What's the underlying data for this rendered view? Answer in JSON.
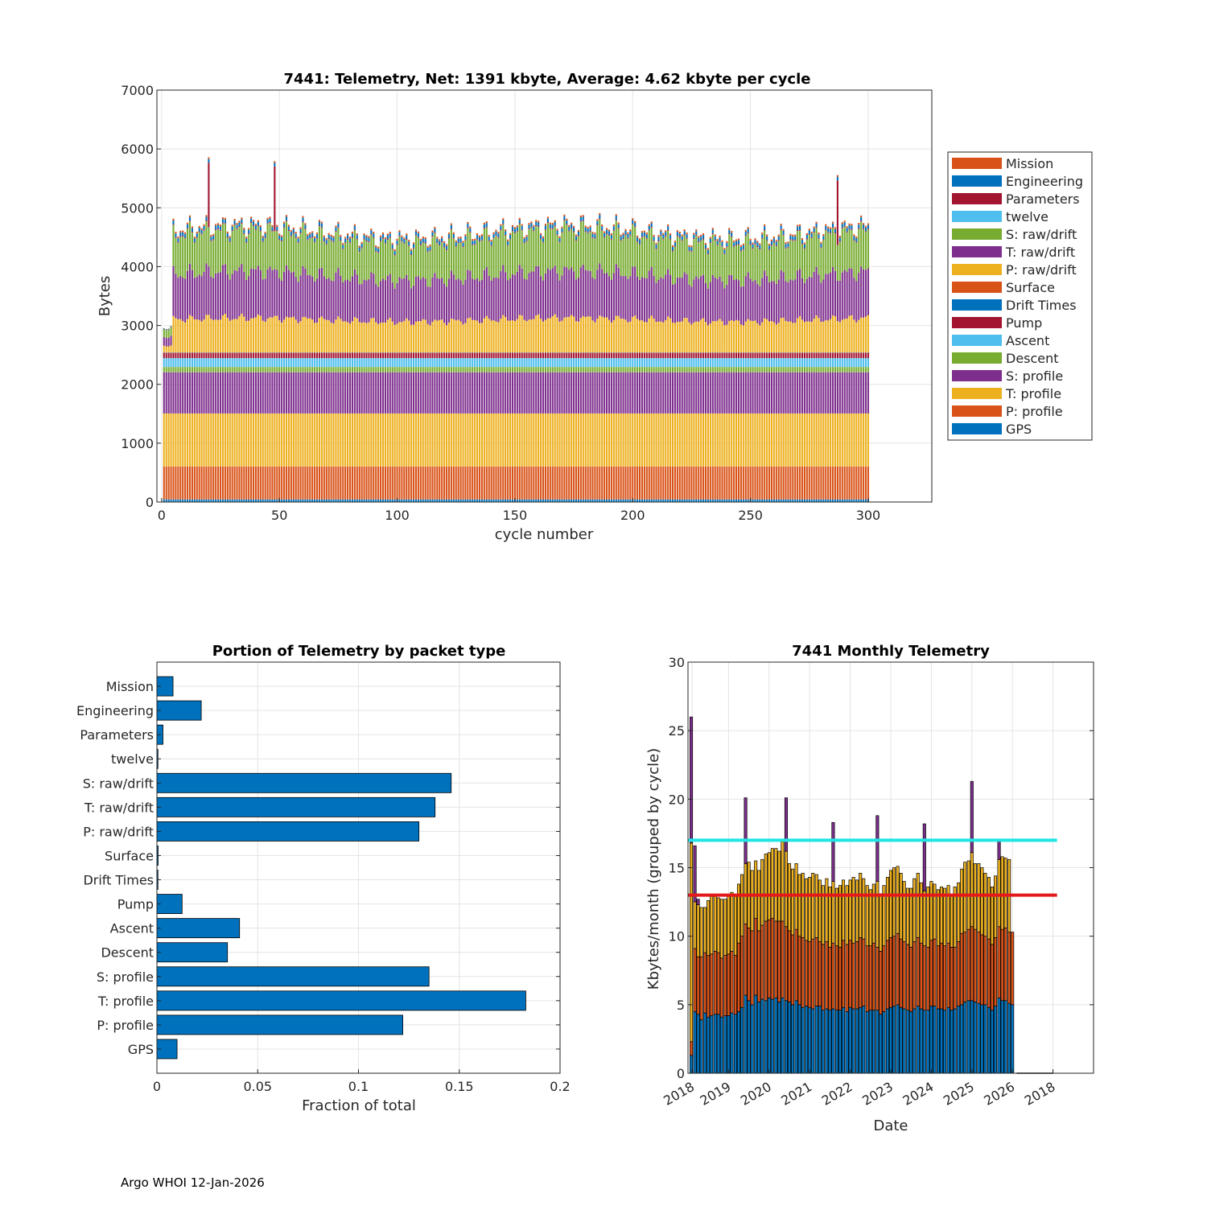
{
  "footer": "Argo WHOI 12-Jan-2026",
  "colors": {
    "c1": "#0072BD",
    "c2": "#D95319",
    "c3": "#EDB120",
    "c4": "#7E2F8E",
    "c5": "#77AC30",
    "c6": "#4DBEEE",
    "c7": "#A2142F",
    "cyan_line": "#1FE5E5",
    "red_line": "#E51919"
  },
  "chart_data": [
    {
      "id": "top",
      "type": "bar",
      "stacked": true,
      "title": "7441: Telemetry, Net:   1391 kbyte,  Average: 4.62 kbyte per cycle",
      "xlabel": "cycle number",
      "ylabel": "Bytes",
      "xlim": [
        -2,
        327
      ],
      "ylim": [
        0,
        7000
      ],
      "xticks": [
        0,
        50,
        100,
        150,
        200,
        250,
        300
      ],
      "yticks": [
        0,
        1000,
        2000,
        3000,
        4000,
        5000,
        6000,
        7000
      ],
      "n_cycles": 300,
      "legend_position": "outside-right",
      "legend": [
        "Mission",
        "Engineering",
        "Parameters",
        "twelve",
        "S: raw/drift",
        "T: raw/drift",
        "P: raw/drift",
        "Surface",
        "Drift Times",
        "Pump",
        "Ascent",
        "Descent",
        "S: profile",
        "T: profile",
        "P: profile",
        "GPS"
      ],
      "series_typical_bytes": [
        {
          "name": "GPS",
          "value": 45
        },
        {
          "name": "P: profile",
          "value": 560
        },
        {
          "name": "T: profile",
          "value": 900
        },
        {
          "name": "S: profile",
          "value": 700
        },
        {
          "name": "Descent",
          "value": 90
        },
        {
          "name": "Ascent",
          "value": 150
        },
        {
          "name": "Pump",
          "value": 90
        },
        {
          "name": "Drift Times",
          "value": 5
        },
        {
          "name": "Surface",
          "value": 5
        },
        {
          "name": "P: raw/drift",
          "value": 550
        },
        {
          "name": "T: raw/drift",
          "value": 750
        },
        {
          "name": "S: raw/drift",
          "value": 650
        },
        {
          "name": "twelve",
          "value": 3
        },
        {
          "name": "Parameters",
          "value": 15
        },
        {
          "name": "Engineering",
          "value": 60
        },
        {
          "name": "Mission",
          "value": 30
        }
      ]
    },
    {
      "id": "bottom-left",
      "type": "bar",
      "orientation": "horizontal",
      "title": "Portion of Telemetry by packet type",
      "xlabel": "Fraction of total",
      "xlim": [
        0,
        0.2
      ],
      "xticks": [
        0,
        0.05,
        0.1,
        0.15,
        0.2
      ],
      "xtick_labels": [
        "0",
        "0.05",
        "0.1",
        "0.15",
        "0.2"
      ],
      "categories": [
        "Mission",
        "Engineering",
        "Parameters",
        "twelve",
        "S: raw/drift",
        "T: raw/drift",
        "P: raw/drift",
        "Surface",
        "Drift Times",
        "Pump",
        "Ascent",
        "Descent",
        "S: profile",
        "T: profile",
        "P: profile",
        "GPS"
      ],
      "values": [
        0.008,
        0.022,
        0.003,
        0.0005,
        0.146,
        0.138,
        0.13,
        0.0006,
        0.0005,
        0.0125,
        0.041,
        0.035,
        0.135,
        0.183,
        0.122,
        0.01
      ]
    },
    {
      "id": "bottom-right",
      "type": "bar",
      "stacked": true,
      "title": "7441 Monthly Telemetry",
      "xlabel": "Date",
      "ylabel": "Kbytes/month (grouped by cycle)",
      "ylim": [
        0,
        30
      ],
      "yticks": [
        0,
        5,
        10,
        15,
        20,
        25,
        30
      ],
      "xtick_labels": [
        "2018",
        "2019",
        "2020",
        "2021",
        "2022",
        "2023",
        "2024",
        "2025",
        "2026",
        "2018"
      ],
      "xlim_years": [
        2018.0,
        2028.0
      ],
      "cyan_line_value": 17,
      "red_line_value": 13,
      "monthly_series": [
        "base",
        "middle",
        "upper",
        "top"
      ],
      "months": [
        {
          "year": 2018.08,
          "base": 1.3,
          "middle": 1.0,
          "upper": 14.5,
          "top": 9.2
        },
        {
          "year": 2018.17,
          "base": 4.5,
          "middle": 4.6,
          "upper": 3.4,
          "top": 4.1
        },
        {
          "year": 2018.25,
          "base": 4.3,
          "middle": 4.2,
          "upper": 3.8,
          "top": 0.4
        },
        {
          "year": 2018.33,
          "base": 3.9,
          "middle": 4.6,
          "upper": 3.6,
          "top": 0.0
        },
        {
          "year": 2018.42,
          "base": 4.4,
          "middle": 4.4,
          "upper": 3.3,
          "top": 0.0
        },
        {
          "year": 2018.5,
          "base": 4.1,
          "middle": 4.5,
          "upper": 4.0,
          "top": 0.0
        },
        {
          "year": 2018.58,
          "base": 4.2,
          "middle": 4.5,
          "upper": 4.2,
          "top": 0.0
        },
        {
          "year": 2018.67,
          "base": 4.3,
          "middle": 4.6,
          "upper": 4.0,
          "top": 0.0
        },
        {
          "year": 2018.75,
          "base": 4.3,
          "middle": 4.5,
          "upper": 4.0,
          "top": 0.0
        },
        {
          "year": 2018.83,
          "base": 4.1,
          "middle": 4.3,
          "upper": 4.3,
          "top": 0.0
        },
        {
          "year": 2018.92,
          "base": 4.2,
          "middle": 4.4,
          "upper": 4.1,
          "top": 0.0
        },
        {
          "year": 2019.0,
          "base": 4.2,
          "middle": 4.5,
          "upper": 4.2,
          "top": 0.0
        },
        {
          "year": 2019.08,
          "base": 4.4,
          "middle": 4.5,
          "upper": 4.3,
          "top": 0.0
        },
        {
          "year": 2019.17,
          "base": 4.3,
          "middle": 4.3,
          "upper": 4.3,
          "top": 0.0
        },
        {
          "year": 2019.25,
          "base": 4.5,
          "middle": 5.0,
          "upper": 4.3,
          "top": 0.0
        },
        {
          "year": 2019.33,
          "base": 4.8,
          "middle": 5.2,
          "upper": 4.5,
          "top": 0.0
        },
        {
          "year": 2019.42,
          "base": 5.7,
          "middle": 5.2,
          "upper": 4.4,
          "top": 4.8
        },
        {
          "year": 2019.5,
          "base": 5.3,
          "middle": 5.3,
          "upper": 4.8,
          "top": 0.0
        },
        {
          "year": 2019.58,
          "base": 5.0,
          "middle": 5.4,
          "upper": 4.4,
          "top": 0.0
        },
        {
          "year": 2019.67,
          "base": 5.7,
          "middle": 5.6,
          "upper": 4.2,
          "top": 0.0
        },
        {
          "year": 2019.75,
          "base": 5.2,
          "middle": 5.2,
          "upper": 4.4,
          "top": 0.0
        },
        {
          "year": 2019.83,
          "base": 5.4,
          "middle": 5.4,
          "upper": 4.8,
          "top": 0.0
        },
        {
          "year": 2019.92,
          "base": 5.3,
          "middle": 5.8,
          "upper": 4.9,
          "top": 0.0
        },
        {
          "year": 2020.0,
          "base": 5.5,
          "middle": 5.7,
          "upper": 4.9,
          "top": 0.0
        },
        {
          "year": 2020.08,
          "base": 5.4,
          "middle": 5.9,
          "upper": 5.1,
          "top": 0.0
        },
        {
          "year": 2020.17,
          "base": 5.5,
          "middle": 5.6,
          "upper": 5.3,
          "top": 0.0
        },
        {
          "year": 2020.25,
          "base": 5.2,
          "middle": 5.9,
          "upper": 5.1,
          "top": 0.0
        },
        {
          "year": 2020.33,
          "base": 5.5,
          "middle": 5.6,
          "upper": 5.8,
          "top": 0.0
        },
        {
          "year": 2020.42,
          "base": 5.3,
          "middle": 5.4,
          "upper": 5.5,
          "top": 3.9
        },
        {
          "year": 2020.5,
          "base": 5.2,
          "middle": 5.2,
          "upper": 4.9,
          "top": 0.0
        },
        {
          "year": 2020.58,
          "base": 5.0,
          "middle": 5.1,
          "upper": 4.8,
          "top": 0.0
        },
        {
          "year": 2020.67,
          "base": 5.3,
          "middle": 5.2,
          "upper": 4.8,
          "top": 0.0
        },
        {
          "year": 2020.75,
          "base": 5.0,
          "middle": 5.0,
          "upper": 4.5,
          "top": 0.0
        },
        {
          "year": 2020.83,
          "base": 4.8,
          "middle": 5.1,
          "upper": 4.7,
          "top": 0.0
        },
        {
          "year": 2020.92,
          "base": 4.9,
          "middle": 4.8,
          "upper": 4.5,
          "top": 0.0
        },
        {
          "year": 2021.0,
          "base": 4.8,
          "middle": 4.8,
          "upper": 4.7,
          "top": 0.0
        },
        {
          "year": 2021.08,
          "base": 4.7,
          "middle": 5.1,
          "upper": 4.8,
          "top": 0.0
        },
        {
          "year": 2021.17,
          "base": 4.9,
          "middle": 5.0,
          "upper": 4.6,
          "top": 0.0
        },
        {
          "year": 2021.25,
          "base": 4.9,
          "middle": 4.7,
          "upper": 4.5,
          "top": 0.0
        },
        {
          "year": 2021.33,
          "base": 4.6,
          "middle": 4.8,
          "upper": 4.3,
          "top": 0.0
        },
        {
          "year": 2021.42,
          "base": 4.7,
          "middle": 4.9,
          "upper": 4.6,
          "top": 0.0
        },
        {
          "year": 2021.5,
          "base": 4.6,
          "middle": 4.6,
          "upper": 4.4,
          "top": 0.0
        },
        {
          "year": 2021.58,
          "base": 4.7,
          "middle": 4.8,
          "upper": 4.5,
          "top": 4.3
        },
        {
          "year": 2021.67,
          "base": 4.6,
          "middle": 4.7,
          "upper": 4.2,
          "top": 0.0
        },
        {
          "year": 2021.75,
          "base": 4.6,
          "middle": 4.6,
          "upper": 4.5,
          "top": 0.0
        },
        {
          "year": 2021.83,
          "base": 4.8,
          "middle": 4.9,
          "upper": 4.4,
          "top": 0.0
        },
        {
          "year": 2021.92,
          "base": 4.5,
          "middle": 4.9,
          "upper": 4.3,
          "top": 0.0
        },
        {
          "year": 2022.0,
          "base": 4.8,
          "middle": 4.9,
          "upper": 4.4,
          "top": 0.0
        },
        {
          "year": 2022.08,
          "base": 4.7,
          "middle": 4.8,
          "upper": 4.8,
          "top": 0.0
        },
        {
          "year": 2022.17,
          "base": 4.7,
          "middle": 4.9,
          "upper": 4.5,
          "top": 0.0
        },
        {
          "year": 2022.25,
          "base": 4.8,
          "middle": 5.1,
          "upper": 4.7,
          "top": 0.0
        },
        {
          "year": 2022.33,
          "base": 4.9,
          "middle": 4.9,
          "upper": 4.4,
          "top": 0.0
        },
        {
          "year": 2022.42,
          "base": 4.5,
          "middle": 4.8,
          "upper": 4.4,
          "top": 0.0
        },
        {
          "year": 2022.5,
          "base": 4.6,
          "middle": 4.7,
          "upper": 4.1,
          "top": 0.0
        },
        {
          "year": 2022.58,
          "base": 4.6,
          "middle": 4.9,
          "upper": 4.3,
          "top": 0.0
        },
        {
          "year": 2022.67,
          "base": 4.6,
          "middle": 4.6,
          "upper": 4.8,
          "top": 4.8
        },
        {
          "year": 2022.75,
          "base": 4.3,
          "middle": 4.6,
          "upper": 4.2,
          "top": 0.0
        },
        {
          "year": 2022.83,
          "base": 4.5,
          "middle": 4.8,
          "upper": 4.4,
          "top": 0.0
        },
        {
          "year": 2022.92,
          "base": 4.7,
          "middle": 5.0,
          "upper": 4.6,
          "top": 0.0
        },
        {
          "year": 2023.0,
          "base": 4.8,
          "middle": 5.1,
          "upper": 4.9,
          "top": 0.0
        },
        {
          "year": 2023.08,
          "base": 4.9,
          "middle": 5.1,
          "upper": 5.0,
          "top": 0.0
        },
        {
          "year": 2023.17,
          "base": 5.0,
          "middle": 5.2,
          "upper": 4.9,
          "top": 0.0
        },
        {
          "year": 2023.25,
          "base": 4.8,
          "middle": 5.0,
          "upper": 4.8,
          "top": 0.0
        },
        {
          "year": 2023.33,
          "base": 4.7,
          "middle": 4.9,
          "upper": 4.4,
          "top": 0.0
        },
        {
          "year": 2023.42,
          "base": 4.6,
          "middle": 4.8,
          "upper": 4.1,
          "top": 0.0
        },
        {
          "year": 2023.5,
          "base": 4.5,
          "middle": 4.7,
          "upper": 4.3,
          "top": 0.0
        },
        {
          "year": 2023.58,
          "base": 4.7,
          "middle": 4.9,
          "upper": 4.6,
          "top": 0.0
        },
        {
          "year": 2023.67,
          "base": 4.9,
          "middle": 5.0,
          "upper": 4.7,
          "top": 0.0
        },
        {
          "year": 2023.75,
          "base": 4.7,
          "middle": 4.8,
          "upper": 4.4,
          "top": 0.0
        },
        {
          "year": 2023.83,
          "base": 4.6,
          "middle": 4.7,
          "upper": 4.0,
          "top": 4.9
        },
        {
          "year": 2023.92,
          "base": 4.6,
          "middle": 4.6,
          "upper": 4.4,
          "top": 0.0
        },
        {
          "year": 2024.0,
          "base": 4.9,
          "middle": 4.8,
          "upper": 4.3,
          "top": 0.0
        },
        {
          "year": 2024.08,
          "base": 4.9,
          "middle": 4.9,
          "upper": 4.0,
          "top": 0.0
        },
        {
          "year": 2024.17,
          "base": 4.7,
          "middle": 4.6,
          "upper": 4.1,
          "top": 0.0
        },
        {
          "year": 2024.25,
          "base": 4.7,
          "middle": 4.8,
          "upper": 4.1,
          "top": 0.0
        },
        {
          "year": 2024.33,
          "base": 4.6,
          "middle": 4.7,
          "upper": 4.2,
          "top": 0.0
        },
        {
          "year": 2024.42,
          "base": 4.8,
          "middle": 4.7,
          "upper": 4.2,
          "top": 0.0
        },
        {
          "year": 2024.5,
          "base": 4.6,
          "middle": 4.6,
          "upper": 3.8,
          "top": 0.0
        },
        {
          "year": 2024.58,
          "base": 4.7,
          "middle": 4.5,
          "upper": 4.4,
          "top": 0.0
        },
        {
          "year": 2024.67,
          "base": 4.9,
          "middle": 4.7,
          "upper": 4.3,
          "top": 0.0
        },
        {
          "year": 2024.75,
          "base": 5.0,
          "middle": 5.2,
          "upper": 4.7,
          "top": 0.0
        },
        {
          "year": 2024.83,
          "base": 5.2,
          "middle": 5.1,
          "upper": 5.1,
          "top": 0.0
        },
        {
          "year": 2024.92,
          "base": 5.3,
          "middle": 5.2,
          "upper": 5.0,
          "top": 0.0
        },
        {
          "year": 2025.0,
          "base": 5.3,
          "middle": 5.4,
          "upper": 5.4,
          "top": 5.2
        },
        {
          "year": 2025.08,
          "base": 5.2,
          "middle": 5.3,
          "upper": 4.8,
          "top": 0.0
        },
        {
          "year": 2025.17,
          "base": 5.1,
          "middle": 5.2,
          "upper": 5.0,
          "top": 0.0
        },
        {
          "year": 2025.25,
          "base": 5.0,
          "middle": 5.1,
          "upper": 4.9,
          "top": 0.0
        },
        {
          "year": 2025.33,
          "base": 5.0,
          "middle": 5.0,
          "upper": 4.6,
          "top": 0.0
        },
        {
          "year": 2025.42,
          "base": 4.8,
          "middle": 5.0,
          "upper": 4.5,
          "top": 0.0
        },
        {
          "year": 2025.5,
          "base": 4.6,
          "middle": 4.8,
          "upper": 4.2,
          "top": 0.0
        },
        {
          "year": 2025.58,
          "base": 4.9,
          "middle": 5.0,
          "upper": 4.5,
          "top": 0.0
        },
        {
          "year": 2025.67,
          "base": 5.5,
          "middle": 5.2,
          "upper": 4.9,
          "top": 1.3
        },
        {
          "year": 2025.75,
          "base": 5.3,
          "middle": 5.2,
          "upper": 5.3,
          "top": 0.0
        },
        {
          "year": 2025.83,
          "base": 5.3,
          "middle": 5.3,
          "upper": 5.1,
          "top": 0.0
        },
        {
          "year": 2025.92,
          "base": 5.1,
          "middle": 5.2,
          "upper": 5.3,
          "top": 0.0
        },
        {
          "year": 2026.0,
          "base": 5.0,
          "middle": 5.3,
          "upper": 0.0,
          "top": 0.0
        }
      ]
    }
  ]
}
